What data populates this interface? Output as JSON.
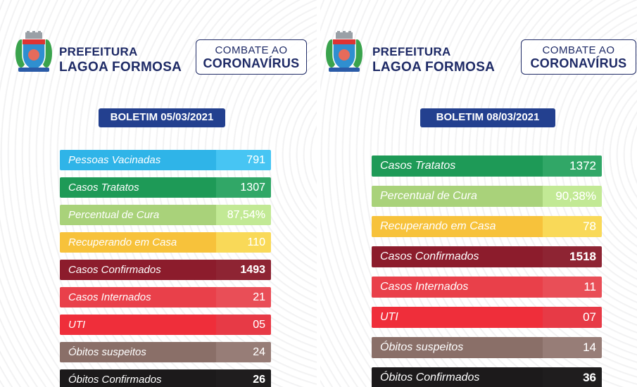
{
  "brand": {
    "line1": "PREFEITURA",
    "line2": "LAGOA FORMOSA"
  },
  "campaign": {
    "line1": "COMBATE AO",
    "line2": "CORONAVÍRUS"
  },
  "colors": {
    "navy": "#23408f",
    "sky": "#2fb4e8",
    "green": "#1e9a57",
    "lightgreen": "#a9d27a",
    "yellow": "#f7c23b",
    "maroon": "#8c1c2c",
    "red": "#e9404a",
    "brightred": "#ef2e3a",
    "taupe": "#8a6f68",
    "black": "#1c1a1b"
  },
  "left": {
    "bulletin": "BOLETIM 05/03/2021",
    "rows": [
      {
        "label": "Pessoas Vacinadas",
        "value": "791",
        "color": "sky"
      },
      {
        "label": "Casos Tratatos",
        "value": "1307",
        "color": "green"
      },
      {
        "label": "Percentual de Cura",
        "value": "87,54%",
        "color": "lightgreen"
      },
      {
        "label": "Recuperando em Casa",
        "value": "110",
        "color": "yellow"
      },
      {
        "label": "Casos Confirmados",
        "value": "1493",
        "color": "maroon"
      },
      {
        "label": "Casos Internados",
        "value": "21",
        "color": "red"
      },
      {
        "label": "UTI",
        "value": "05",
        "color": "brightred"
      },
      {
        "label": "Óbitos suspeitos",
        "value": "24",
        "color": "taupe"
      },
      {
        "label": "Óbitos Confirmados",
        "value": "26",
        "color": "black"
      }
    ]
  },
  "right": {
    "bulletin": "BOLETIM  08/03/2021",
    "rows": [
      {
        "label": "Casos Tratatos",
        "value": "1372",
        "color": "green"
      },
      {
        "label": "Percentual de Cura",
        "value": "90,38%",
        "color": "lightgreen"
      },
      {
        "label": "Recuperando em Casa",
        "value": "78",
        "color": "yellow"
      },
      {
        "label": "Casos Confirmados",
        "value": "1518",
        "color": "maroon"
      },
      {
        "label": "Casos Internados",
        "value": "11",
        "color": "red"
      },
      {
        "label": "UTI",
        "value": "07",
        "color": "brightred"
      },
      {
        "label": "Óbitos suspeitos",
        "value": "14",
        "color": "taupe"
      },
      {
        "label": "Óbitos Confirmados",
        "value": "36",
        "color": "black"
      }
    ]
  },
  "icons": {
    "logo": "municipal-coat-of-arms-icon"
  }
}
